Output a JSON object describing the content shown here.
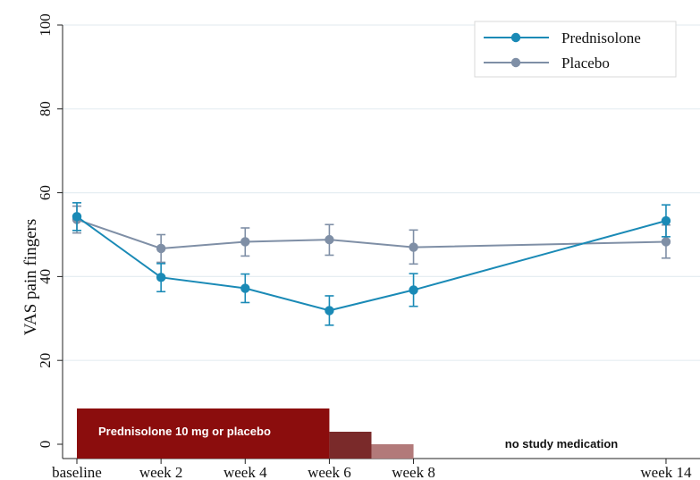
{
  "chart_data": {
    "type": "line",
    "title": "",
    "xlabel": "",
    "ylabel": "VAS pain fingers",
    "ylim": [
      0,
      100
    ],
    "yticks": [
      0,
      20,
      40,
      60,
      80,
      100
    ],
    "categories": [
      "baseline",
      "week 2",
      "week 4",
      "week 6",
      "week 8",
      "week 14"
    ],
    "x_weeks": [
      0,
      2,
      4,
      6,
      8,
      14
    ],
    "grid": true,
    "legend_position": "top-right",
    "series": [
      {
        "name": "Prednisolone",
        "color": "#1a8ab6",
        "x": [
          0,
          2,
          4,
          6,
          8,
          14
        ],
        "values": [
          54.3,
          39.8,
          37.2,
          31.9,
          36.8,
          53.3
        ],
        "error_low": [
          51.0,
          36.4,
          33.8,
          28.4,
          32.9,
          49.5
        ],
        "error_high": [
          57.6,
          43.1,
          40.6,
          35.4,
          40.7,
          57.1
        ]
      },
      {
        "name": "Placebo",
        "color": "#7f8fa6",
        "x": [
          0,
          2,
          4,
          6,
          8,
          14
        ],
        "values": [
          53.6,
          46.7,
          48.3,
          48.8,
          47.0,
          48.3
        ],
        "error_low": [
          50.4,
          43.4,
          44.9,
          45.1,
          43.0,
          44.4
        ],
        "error_high": [
          56.8,
          50.0,
          51.6,
          52.4,
          51.1,
          52.3
        ]
      }
    ],
    "treatment_bars": [
      {
        "label": "Prednisolone 10 mg or placebo",
        "from_week": 0,
        "to_week": 6,
        "color": "#8b0d0d"
      },
      {
        "label": "",
        "from_week": 6,
        "to_week": 7,
        "color": "#7a2a2a"
      },
      {
        "label": "",
        "from_week": 7,
        "to_week": 8,
        "color": "#b27a7a"
      }
    ],
    "annotation": "no study medication"
  }
}
